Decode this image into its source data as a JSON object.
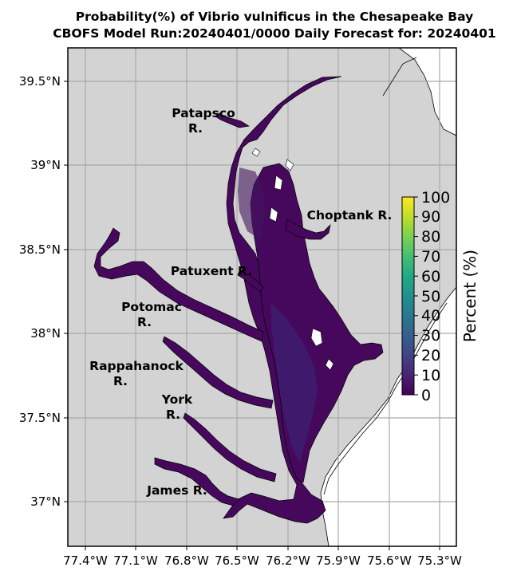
{
  "title": {
    "line1": "Probability(%) of Vibrio vulnificus in the Chesapeake Bay",
    "line2": "CBOFS Model Run:20240401/0000 Daily Forecast for: 20240401"
  },
  "axes": {
    "lon_ticks": [
      "77.4°W",
      "77.1°W",
      "76.8°W",
      "76.5°W",
      "76.2°W",
      "75.9°W",
      "75.6°W",
      "75.3°W"
    ],
    "lat_ticks": [
      "39.5°N",
      "39°N",
      "38.5°N",
      "38°N",
      "37.5°N",
      "37°N"
    ],
    "lon_values": [
      -77.4,
      -77.1,
      -76.8,
      -76.5,
      -76.2,
      -75.9,
      -75.6,
      -75.3
    ],
    "lat_values": [
      39.5,
      39.0,
      38.5,
      38.0,
      37.5,
      37.0
    ]
  },
  "river_labels": [
    {
      "name": "Patapsco",
      "name2": "R."
    },
    {
      "name": "Choptank R."
    },
    {
      "name": "Patuxent R."
    },
    {
      "name": "Potomac",
      "name2": "R."
    },
    {
      "name": "Rappahanock",
      "name2": "R."
    },
    {
      "name": "York",
      "name2": "R."
    },
    {
      "name": "James R."
    }
  ],
  "colorbar": {
    "label": "Percent (%)",
    "ticks": [
      "0",
      "10",
      "20",
      "30",
      "40",
      "50",
      "60",
      "70",
      "80",
      "90",
      "100"
    ],
    "tick_values": [
      0,
      10,
      20,
      30,
      40,
      50,
      60,
      70,
      80,
      90,
      100
    ],
    "colormap": "viridis"
  },
  "colors": {
    "land": "#d3d3d3",
    "water_low": "#440154",
    "water_mid": "#3b2a7a",
    "ocean": "#ffffff",
    "grid": "#a9a9a9"
  }
}
